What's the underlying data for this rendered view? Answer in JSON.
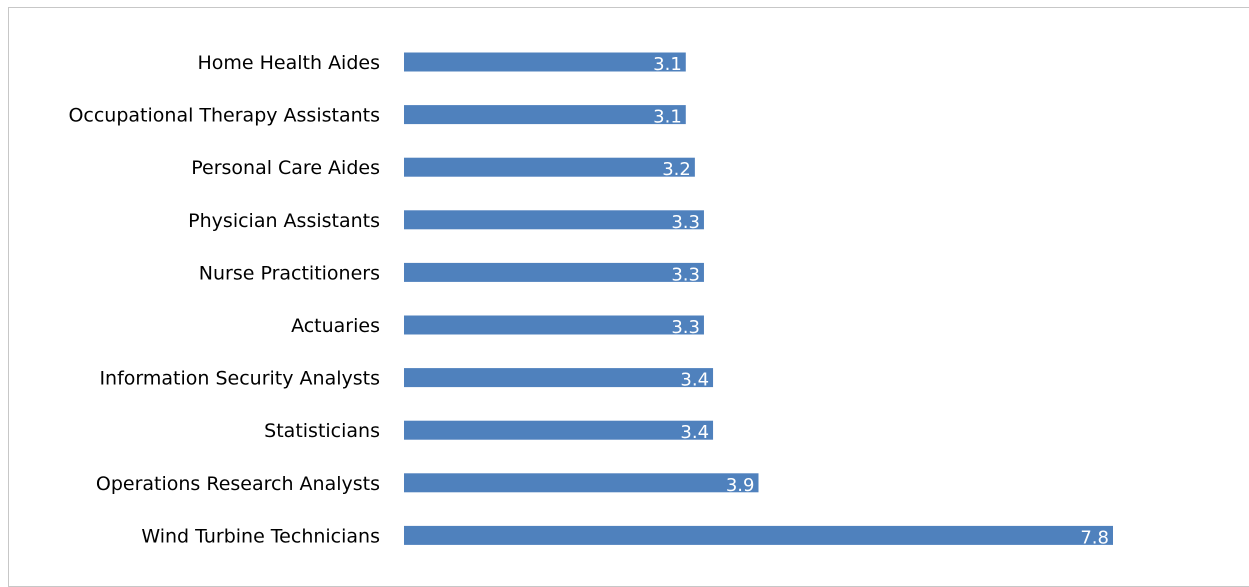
{
  "chart_data": {
    "type": "bar",
    "orientation": "horizontal",
    "categories": [
      "Home Health Aides",
      "Occupational Therapy Assistants",
      "Personal Care Aides",
      "Physician Assistants",
      "Nurse Practitioners",
      "Actuaries",
      "Information Security Analysts",
      "Statisticians",
      "Operations Research Analysts",
      "Wind Turbine Technicians"
    ],
    "values": [
      3.1,
      3.1,
      3.2,
      3.3,
      3.3,
      3.3,
      3.4,
      3.4,
      3.9,
      7.8
    ],
    "data_labels": [
      "3.1",
      "3.1",
      "3.2",
      "3.3",
      "3.3",
      "3.3",
      "3.4",
      "3.4",
      "3.9",
      "7.8"
    ],
    "xlim": [
      0,
      7.8
    ],
    "grid": false,
    "legend": "none",
    "bar_color": "#4f81bd",
    "label_color": "#ffffff"
  }
}
